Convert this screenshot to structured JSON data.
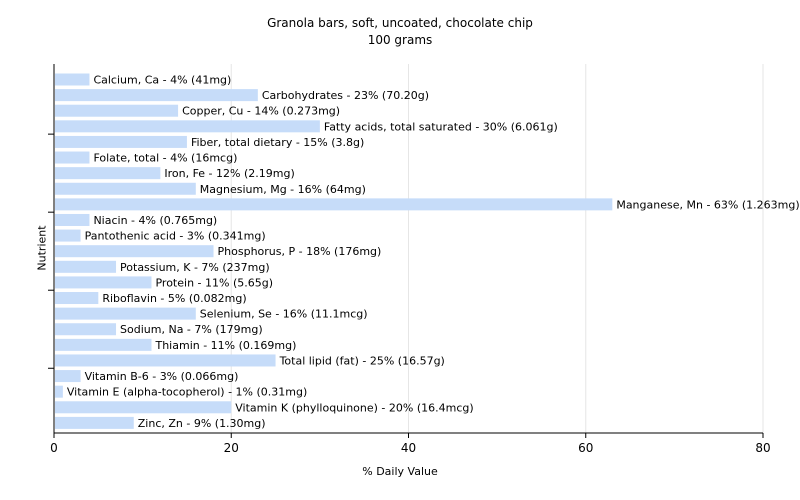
{
  "chart_data": {
    "type": "bar",
    "orientation": "horizontal",
    "title": "Granola bars, soft, uncoated, chocolate chip",
    "subtitle": "100 grams",
    "xlabel": "% Daily Value",
    "ylabel": "Nutrient",
    "xlim": [
      0,
      80
    ],
    "xticks": [
      0,
      20,
      40,
      60,
      80
    ],
    "grid": true,
    "bar_color": "#c6dcf9",
    "grid_color": "#e6e6e6",
    "categories": [
      "Calcium, Ca",
      "Carbohydrates",
      "Copper, Cu",
      "Fatty acids, total saturated",
      "Fiber, total dietary",
      "Folate, total",
      "Iron, Fe",
      "Magnesium, Mg",
      "Manganese, Mn",
      "Niacin",
      "Pantothenic acid",
      "Phosphorus, P",
      "Potassium, K",
      "Protein",
      "Riboflavin",
      "Selenium, Se",
      "Sodium, Na",
      "Thiamin",
      "Total lipid (fat)",
      "Vitamin B-6",
      "Vitamin E (alpha-tocopherol)",
      "Vitamin K (phylloquinone)",
      "Zinc, Zn"
    ],
    "values": [
      4,
      23,
      14,
      30,
      15,
      4,
      12,
      16,
      63,
      4,
      3,
      18,
      7,
      11,
      5,
      16,
      7,
      11,
      25,
      3,
      1,
      20,
      9
    ],
    "labels": [
      "Calcium, Ca - 4% (41mg)",
      "Carbohydrates - 23% (70.20g)",
      "Copper, Cu - 14% (0.273mg)",
      "Fatty acids, total saturated - 30% (6.061g)",
      "Fiber, total dietary - 15% (3.8g)",
      "Folate, total - 4% (16mcg)",
      "Iron, Fe - 12% (2.19mg)",
      "Magnesium, Mg - 16% (64mg)",
      "Manganese, Mn - 63% (1.263mg)",
      "Niacin - 4% (0.765mg)",
      "Pantothenic acid - 3% (0.341mg)",
      "Phosphorus, P - 18% (176mg)",
      "Potassium, K - 7% (237mg)",
      "Protein - 11% (5.65g)",
      "Riboflavin - 5% (0.082mg)",
      "Selenium, Se - 16% (11.1mcg)",
      "Sodium, Na - 7% (179mg)",
      "Thiamin - 11% (0.169mg)",
      "Total lipid (fat) - 25% (16.57g)",
      "Vitamin B-6 - 3% (0.066mg)",
      "Vitamin E (alpha-tocopherol) - 1% (0.31mg)",
      "Vitamin K (phylloquinone) - 20% (16.4mcg)",
      "Zinc, Zn - 9% (1.30mg)"
    ]
  }
}
